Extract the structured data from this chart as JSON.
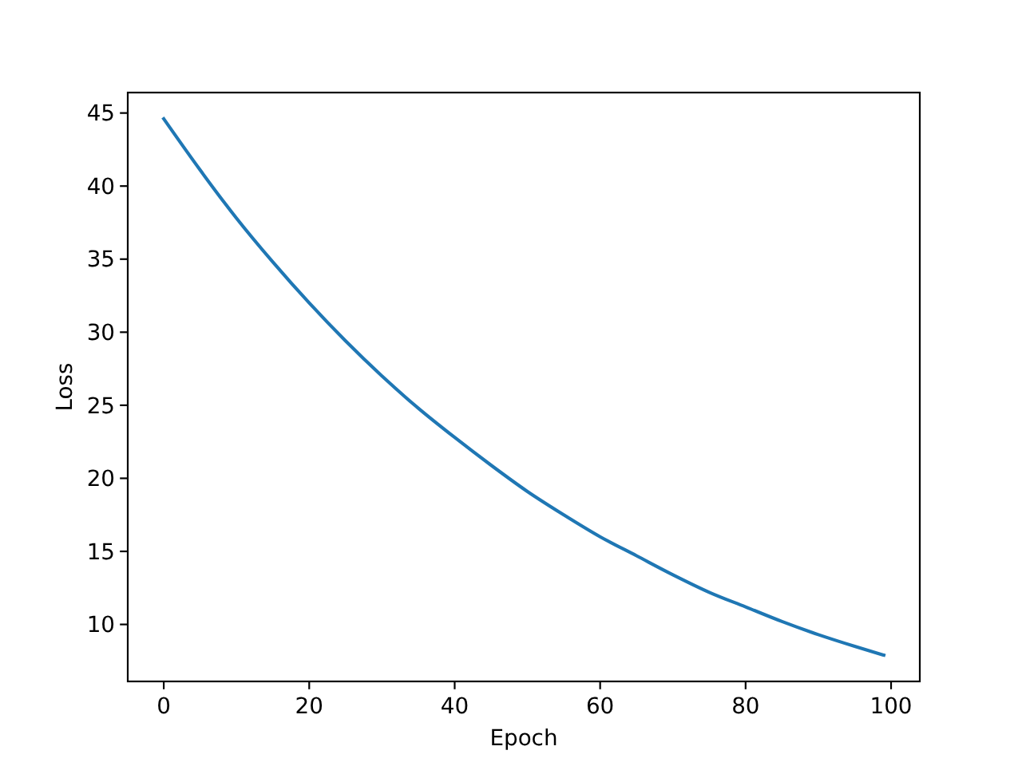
{
  "chart_data": {
    "type": "line",
    "xlabel": "Epoch",
    "ylabel": "Loss",
    "x": [
      0,
      5,
      10,
      15,
      20,
      25,
      30,
      35,
      40,
      45,
      50,
      55,
      60,
      65,
      70,
      75,
      80,
      85,
      90,
      95,
      99
    ],
    "series": [
      {
        "color": "#1f77b4",
        "values": [
          44.6,
          41.1,
          37.8,
          34.8,
          32.0,
          29.4,
          27.0,
          24.8,
          22.8,
          20.9,
          19.1,
          17.5,
          16.0,
          14.7,
          13.4,
          12.2,
          11.2,
          10.2,
          9.3,
          8.5,
          7.9
        ]
      }
    ],
    "xlim": [
      -4.95,
      103.95
    ],
    "ylim": [
      6.1,
      46.4
    ],
    "xticks": [
      0,
      20,
      40,
      60,
      80,
      100
    ],
    "yticks": [
      10,
      15,
      20,
      25,
      30,
      35,
      40,
      45
    ],
    "line_style": "solid"
  }
}
